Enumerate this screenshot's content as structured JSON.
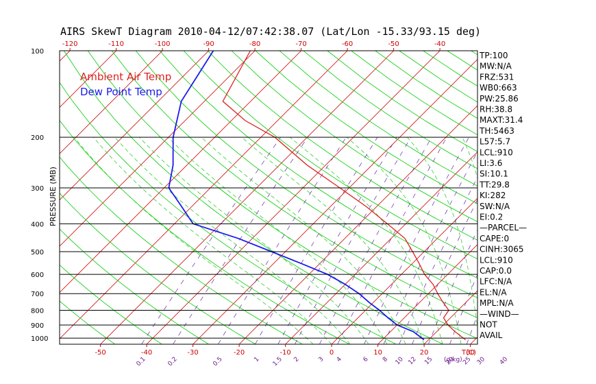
{
  "chart_data": {
    "type": "line",
    "title": "AIRS SkewT Diagram 2010-04-12/07:42:38.07 (Lat/Lon -15.33/93.15 deg)",
    "ylabel": "PRESSURE (MB)",
    "xlabel_right": "T(C)",
    "mixing_label": "(g/kg)",
    "ylim": [
      1050,
      100
    ],
    "y_scale": "log",
    "pressure_ticks": [
      100,
      200,
      300,
      400,
      500,
      600,
      700,
      800,
      900,
      1000
    ],
    "top_temp_ticks": [
      -120,
      -110,
      -100,
      -90,
      -80,
      -70,
      -60,
      -50,
      -40
    ],
    "bottom_temp_ticks": [
      -50,
      -40,
      -30,
      -20,
      -10,
      0,
      10,
      20,
      30
    ],
    "mixing_ratio_ticks": [
      "0.1",
      "0.2",
      "0.5",
      "1",
      "1.5",
      "2",
      "3",
      "4",
      "6",
      "8",
      "10",
      "12",
      "15",
      "20",
      "25",
      "30",
      "40"
    ],
    "legend": [
      {
        "label": "Ambient Air Temp",
        "color": "#dd2222"
      },
      {
        "label": "Dew Point Temp",
        "color": "#1a1aee"
      }
    ],
    "series": [
      {
        "name": "Ambient Air Temp",
        "color": "#dd2222",
        "points": [
          {
            "p": 100,
            "t": -81
          },
          {
            "p": 150,
            "t": -76
          },
          {
            "p": 175,
            "t": -67
          },
          {
            "p": 200,
            "t": -57
          },
          {
            "p": 250,
            "t": -44
          },
          {
            "p": 300,
            "t": -32
          },
          {
            "p": 350,
            "t": -22
          },
          {
            "p": 400,
            "t": -14
          },
          {
            "p": 450,
            "t": -7
          },
          {
            "p": 500,
            "t": -2.5
          },
          {
            "p": 550,
            "t": 1.5
          },
          {
            "p": 600,
            "t": 5
          },
          {
            "p": 650,
            "t": 9
          },
          {
            "p": 700,
            "t": 12
          },
          {
            "p": 750,
            "t": 15
          },
          {
            "p": 800,
            "t": 18
          },
          {
            "p": 850,
            "t": 18.5
          },
          {
            "p": 900,
            "t": 21
          },
          {
            "p": 950,
            "t": 24
          },
          {
            "p": 1013,
            "t": 28
          }
        ]
      },
      {
        "name": "Dew Point Temp",
        "color": "#1a1aee",
        "points": [
          {
            "p": 100,
            "t": -89
          },
          {
            "p": 150,
            "t": -85
          },
          {
            "p": 200,
            "t": -79
          },
          {
            "p": 250,
            "t": -73
          },
          {
            "p": 300,
            "t": -69
          },
          {
            "p": 350,
            "t": -62
          },
          {
            "p": 400,
            "t": -56
          },
          {
            "p": 450,
            "t": -43
          },
          {
            "p": 500,
            "t": -33
          },
          {
            "p": 550,
            "t": -24
          },
          {
            "p": 600,
            "t": -16
          },
          {
            "p": 650,
            "t": -10
          },
          {
            "p": 700,
            "t": -5
          },
          {
            "p": 750,
            "t": -1
          },
          {
            "p": 800,
            "t": 3
          },
          {
            "p": 850,
            "t": 6.5
          },
          {
            "p": 900,
            "t": 10
          },
          {
            "p": 950,
            "t": 15
          },
          {
            "p": 1013,
            "t": 19
          }
        ]
      }
    ]
  },
  "stats": [
    "TP:100",
    "MW:N/A",
    "FRZ:531",
    "WB0:663",
    "PW:25.86",
    "RH:38.8",
    "MAXT:31.4",
    "TH:5463",
    "L57:5.7",
    "LCL:910",
    "LI:3.6",
    "SI:10.1",
    "TT:29.8",
    "KI:282",
    "SW:N/A",
    "EI:0.2",
    "—PARCEL—",
    "CAPE:0",
    "CINH:3065",
    "LCL:910",
    "CAP:0.0",
    "LFC:N/A",
    "EL:N/A",
    "MPL:N/A",
    "—WIND—",
    "NOT",
    "AVAIL"
  ],
  "colors": {
    "isotherm": "#cc0000",
    "dry_adiabat": "#00cc00",
    "moist_adiabat": "#33cc33",
    "mixing_ratio": "#6622aa",
    "temp": "#dd2222",
    "dewpoint": "#1a1aee"
  }
}
